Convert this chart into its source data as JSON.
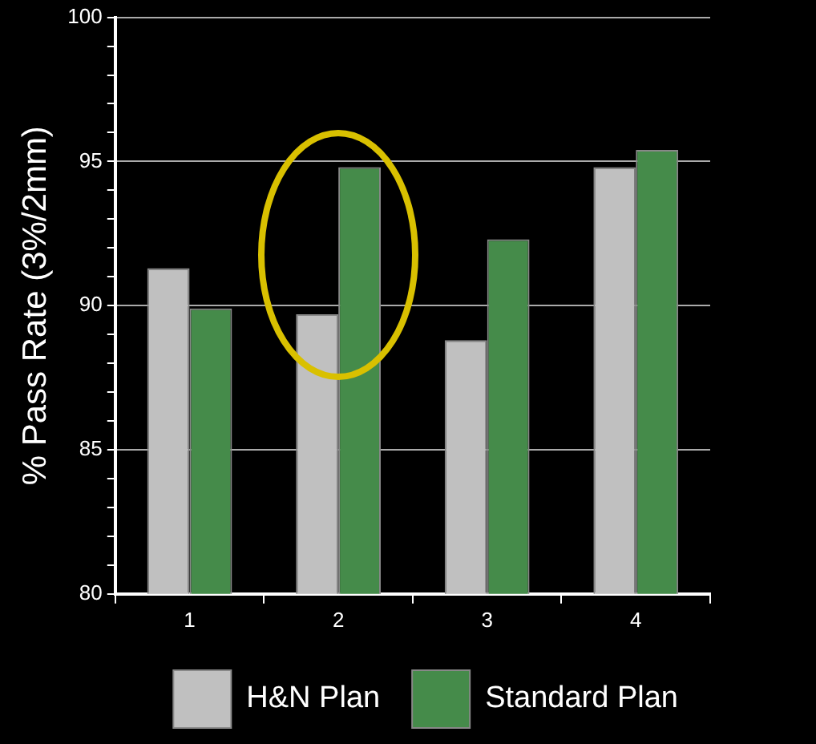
{
  "chart_data": {
    "type": "bar",
    "ylabel": "% Pass Rate (3%/2mm)",
    "categories": [
      "1",
      "2",
      "3",
      "4"
    ],
    "series": [
      {
        "name": "H&N Plan",
        "color": "#c0c0c0",
        "values": [
          91.3,
          89.7,
          88.8,
          94.8
        ]
      },
      {
        "name": "Standard Plan",
        "color": "#458b4a",
        "values": [
          89.9,
          94.8,
          92.3,
          95.4
        ]
      }
    ],
    "ylim": [
      80,
      100
    ],
    "yticks": [
      80,
      {
        "value": 81,
        "label": null
      },
      {
        "value": 82,
        "label": null
      },
      {
        "value": 83,
        "label": null
      },
      {
        "value": 84,
        "label": null
      },
      85,
      {
        "value": 86,
        "label": null
      },
      {
        "value": 87,
        "label": null
      },
      {
        "value": 88,
        "label": null
      },
      {
        "value": 89,
        "label": null
      },
      90,
      {
        "value": 91,
        "label": null
      },
      {
        "value": 92,
        "label": null
      },
      {
        "value": 93,
        "label": null
      },
      {
        "value": 94,
        "label": null
      },
      95,
      {
        "value": 96,
        "label": null
      },
      {
        "value": 97,
        "label": null
      },
      {
        "value": 98,
        "label": null
      },
      {
        "value": 99,
        "label": null
      },
      100
    ],
    "grid": "y",
    "legend": "bottom"
  }
}
